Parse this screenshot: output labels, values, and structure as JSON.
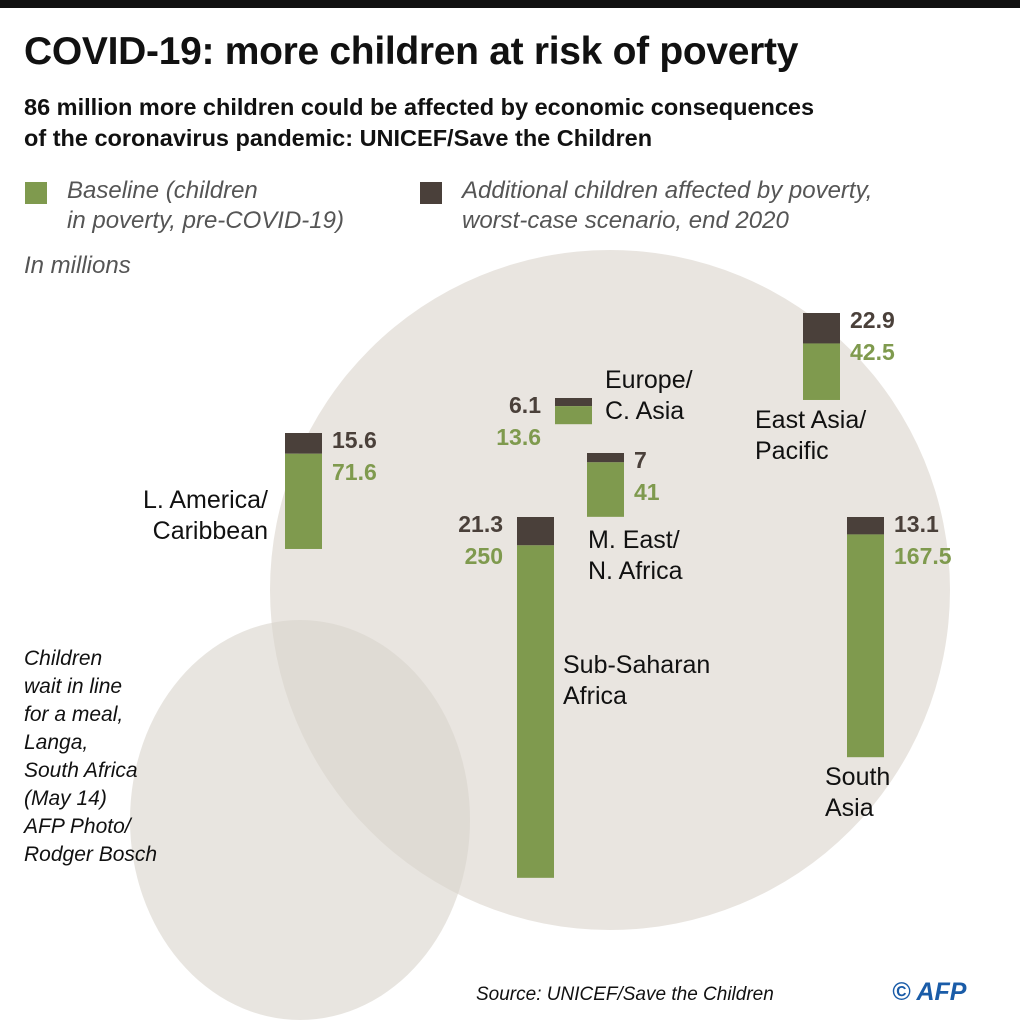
{
  "chart_data": {
    "type": "bar",
    "stacked": true,
    "title": "COVID-19: more children at risk of poverty",
    "subtitle": "86 million more children could be affected by economic consequences\nof the coronavirus pandemic: UNICEF/Save the Children",
    "unit_label": "In millions",
    "categories": [
      "L. America/\nCaribbean",
      "Europe/\nC. Asia",
      "East Asia/\nPacific",
      "M. East/\nN. Africa",
      "Sub-Saharan\nAfrica",
      "South\nAsia"
    ],
    "series": [
      {
        "name": "Baseline (children\nin poverty, pre-COVID-19)",
        "color": "#7f9a4e",
        "values": [
          71.6,
          13.6,
          42.5,
          41,
          250,
          167.5
        ]
      },
      {
        "name": "Additional children affected by poverty,\nworst-case scenario, end 2020",
        "color": "#4a403a",
        "values": [
          15.6,
          6.1,
          22.9,
          7,
          21.3,
          13.1
        ]
      }
    ],
    "caption": "Children\nwait in line\nfor a meal,\nLanga,\nSouth Africa\n(May 14)\nAFP Photo/\nRodger Bosch",
    "source": "Source: UNICEF/Save the Children",
    "credit": "© AFP"
  }
}
